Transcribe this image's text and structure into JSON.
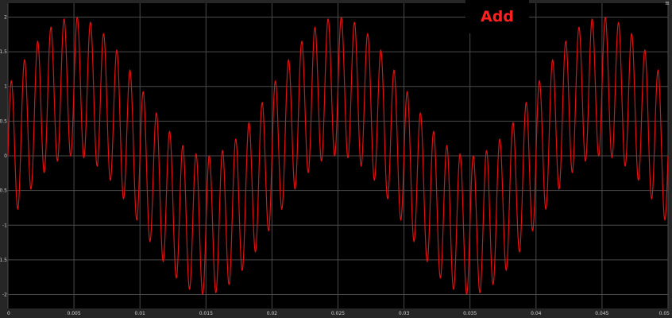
{
  "block_label": "Add",
  "corner_mark": "≡",
  "colors": {
    "background": "#000000",
    "frame": "#262626",
    "grid": "#4a4a4a",
    "signal": "#e01010",
    "label": "#ff2020",
    "tick_text": "#d0d0d0"
  },
  "chart_data": {
    "type": "line",
    "title": "",
    "xlabel": "",
    "ylabel": "",
    "xlim": [
      0,
      0.05
    ],
    "ylim": [
      -2.2,
      2.2
    ],
    "grid": true,
    "legend": "none",
    "x_ticks": [
      0,
      0.005,
      0.01,
      0.015,
      0.02,
      0.025,
      0.03,
      0.035,
      0.04,
      0.045,
      0.05
    ],
    "x_tick_labels": [
      "0",
      "0.005",
      "0.01",
      "0.015",
      "0.02",
      "0.025",
      "0.03",
      "0.035",
      "0.04",
      "0.045",
      "0.05"
    ],
    "y_ticks": [
      -2,
      -1.5,
      -1,
      -0.5,
      0,
      0.5,
      1,
      1.5,
      2
    ],
    "y_tick_labels": [
      "-2",
      "-1.5",
      "-1",
      "-0.5",
      "0",
      "0.5",
      "1",
      "1.5",
      "2"
    ],
    "series": [
      {
        "signal": "sum of two sines",
        "components": [
          {
            "amplitude": 1,
            "frequency_hz": 50
          },
          {
            "amplitude": 1,
            "frequency_hz": 1000
          }
        ],
        "x_start": 0,
        "x_end": 0.05,
        "samples": 2500
      }
    ]
  }
}
